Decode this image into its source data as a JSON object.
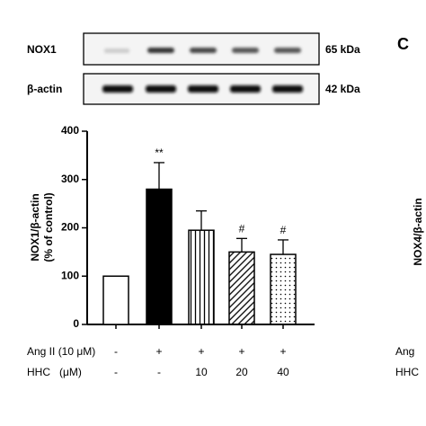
{
  "chart_data": {
    "type": "bar",
    "panel_label": "C",
    "blot_rows": [
      {
        "protein": "NOX1",
        "size": "65 kDa"
      },
      {
        "protein": "β-actin",
        "size": "42 kDa"
      }
    ],
    "y_label": [
      "NOX1/β-actin",
      "(% of control)"
    ],
    "values": [
      100,
      280,
      195,
      150,
      145
    ],
    "errors": [
      null,
      55,
      40,
      28,
      30
    ],
    "annotations": [
      null,
      "**",
      null,
      "#",
      "#"
    ],
    "fills": [
      "white",
      "black",
      "vertical",
      "diagonal",
      "dots"
    ],
    "ylim": [
      0,
      400
    ],
    "yticks": [
      0,
      100,
      200,
      300,
      400
    ],
    "conditions": [
      {
        "label": "Ang II (10 μM)",
        "values": [
          "-",
          "+",
          "+",
          "+",
          "+"
        ]
      },
      {
        "label": "HHC   (μM)",
        "values": [
          "-",
          "-",
          "10",
          "20",
          "40"
        ]
      }
    ],
    "next_panel": {
      "y_label": "NOX4/β-actin",
      "rows": [
        "Ang",
        "HHC"
      ]
    }
  }
}
